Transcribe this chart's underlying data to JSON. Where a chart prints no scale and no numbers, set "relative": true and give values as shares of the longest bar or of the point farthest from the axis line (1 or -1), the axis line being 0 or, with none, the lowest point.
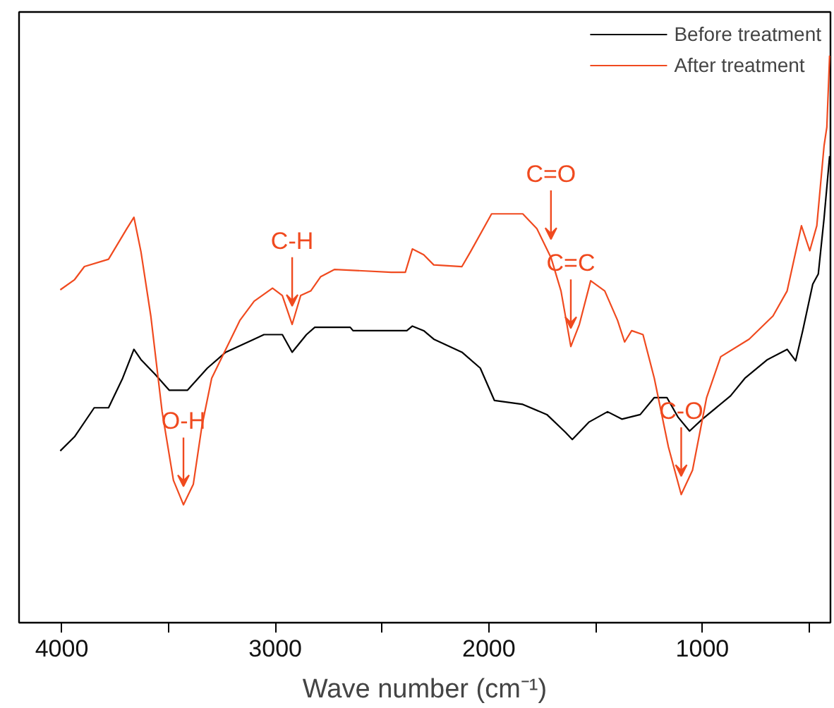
{
  "chart_data": {
    "type": "line",
    "relative": true,
    "xlabel": "Wave number (cm⁻¹)",
    "xlim": [
      4200,
      400
    ],
    "xticks": [
      4000,
      {
        "value": 3500,
        "label": null
      },
      3000,
      {
        "value": 2500,
        "label": null
      },
      2000,
      {
        "value": 1500,
        "label": null
      },
      1000,
      {
        "value": 500,
        "label": null
      }
    ],
    "legend": "top right",
    "grid": false,
    "series": [
      {
        "name": "Before treatment",
        "color": "#000000",
        "x": [
          4007,
          3940,
          3848,
          3781,
          3715,
          3662,
          3629,
          3563,
          3497,
          3411,
          3318,
          3232,
          3099,
          3053,
          2967,
          2921,
          2854,
          2815,
          2649,
          2636,
          2384,
          2358,
          2305,
          2258,
          2126,
          2040,
          1974,
          1841,
          1728,
          1642,
          1609,
          1530,
          1444,
          1377,
          1291,
          1225,
          1166,
          1113,
          1060,
          1000,
          868,
          801,
          695,
          603,
          563,
          530,
          483,
          457,
          430,
          404
        ],
        "values": [
          0.303,
          0.328,
          0.379,
          0.379,
          0.431,
          0.482,
          0.464,
          0.438,
          0.41,
          0.41,
          0.449,
          0.477,
          0.5,
          0.508,
          0.508,
          0.477,
          0.508,
          0.521,
          0.521,
          0.515,
          0.515,
          0.523,
          0.515,
          0.5,
          0.477,
          0.449,
          0.392,
          0.385,
          0.367,
          0.336,
          0.323,
          0.354,
          0.372,
          0.359,
          0.367,
          0.397,
          0.397,
          0.362,
          0.338,
          0.359,
          0.4,
          0.431,
          0.464,
          0.482,
          0.462,
          0.515,
          0.597,
          0.615,
          0.713,
          0.823
        ]
      },
      {
        "name": "After treatment",
        "color": "#f04a1f",
        "x": [
          4007,
          3940,
          3894,
          3781,
          3695,
          3662,
          3629,
          3583,
          3530,
          3477,
          3430,
          3384,
          3344,
          3298,
          3232,
          3166,
          3099,
          3013,
          2967,
          2921,
          2881,
          2834,
          2788,
          2722,
          2457,
          2391,
          2358,
          2305,
          2258,
          2126,
          2086,
          1987,
          1841,
          1775,
          1709,
          1662,
          1616,
          1576,
          1523,
          1457,
          1397,
          1364,
          1331,
          1278,
          1225,
          1159,
          1099,
          1046,
          980,
          914,
          781,
          669,
          603,
          536,
          497,
          464,
          430,
          417,
          404
        ],
        "values": [
          0.587,
          0.605,
          0.628,
          0.641,
          0.695,
          0.715,
          0.654,
          0.541,
          0.372,
          0.251,
          0.208,
          0.244,
          0.346,
          0.431,
          0.482,
          0.533,
          0.567,
          0.59,
          0.577,
          0.526,
          0.577,
          0.585,
          0.61,
          0.623,
          0.618,
          0.618,
          0.659,
          0.649,
          0.631,
          0.628,
          0.654,
          0.721,
          0.721,
          0.695,
          0.644,
          0.585,
          0.487,
          0.526,
          0.603,
          0.585,
          0.533,
          0.495,
          0.515,
          0.508,
          0.431,
          0.31,
          0.226,
          0.269,
          0.397,
          0.469,
          0.5,
          0.541,
          0.585,
          0.7,
          0.656,
          0.7,
          0.841,
          0.874,
          1.0
        ]
      }
    ],
    "annotations": [
      {
        "text": "O-H",
        "x": 3430,
        "y": 0.208
      },
      {
        "text": "C-H",
        "x": 2921,
        "y": 0.526
      },
      {
        "text": "C=O",
        "x": 1709,
        "y": 0.644
      },
      {
        "text": "C=C",
        "x": 1616,
        "y": 0.487
      },
      {
        "text": "C-O",
        "x": 1099,
        "y": 0.226
      }
    ]
  }
}
